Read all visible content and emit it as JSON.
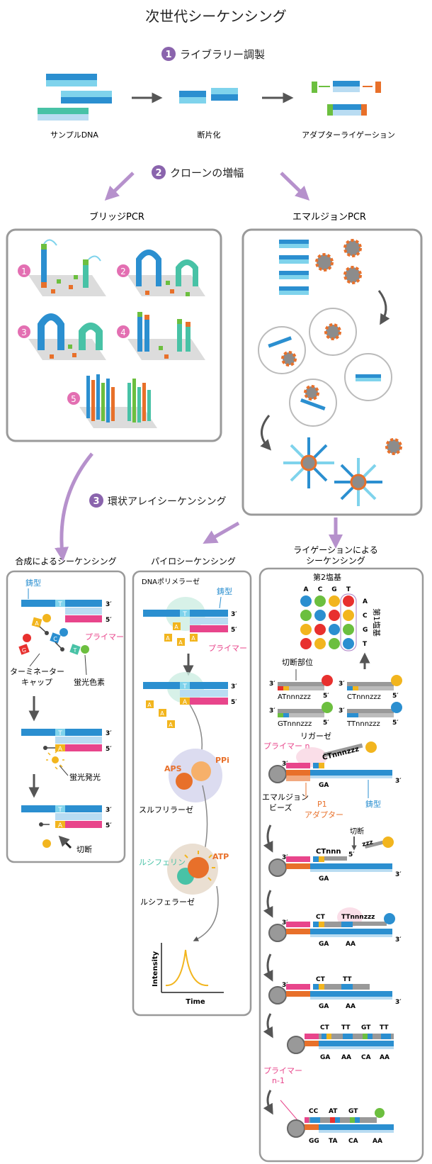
{
  "title": "次世代シーケンシング",
  "colors": {
    "blue": "#2b8fd0",
    "lightblue": "#b9dcf2",
    "cyan": "#7fd3ec",
    "teal": "#48c2a6",
    "green": "#6cbf3f",
    "orange": "#e8702a",
    "pink": "#e8458b",
    "yellow": "#f2b51e",
    "red": "#e8302e",
    "purple": "#8a64ad",
    "arrowpurple": "#b691cc",
    "gray": "#7a7a7a",
    "panel": "#9a9a9a",
    "magenta": "#e23c8a"
  },
  "steps": {
    "s1": {
      "num": "1",
      "label": "ライブラリー調製"
    },
    "s2": {
      "num": "2",
      "label": "クローンの増幅"
    },
    "s3": {
      "num": "3",
      "label": "環状アレイシーケンシング"
    }
  },
  "library": {
    "sample": "サンプルDNA",
    "fragment": "断片化",
    "ligation": "アダプターライゲーション"
  },
  "bridge": {
    "title": "ブリッジPCR",
    "nums": [
      "1",
      "2",
      "3",
      "4",
      "5"
    ]
  },
  "emulsion": {
    "title": "エマルジョンPCR"
  },
  "synthesis": {
    "title": "合成によるシーケンシング",
    "template": "鋳型",
    "primer": "プライマー",
    "terminator": "ターミネーター",
    "cap": "キャップ",
    "dye": "蛍光色素",
    "emit": "蛍光発光",
    "cleave": "切断",
    "p3": "3′",
    "p5": "5′",
    "T": "T",
    "A": "A",
    "G": "G",
    "C": "C"
  },
  "pyro": {
    "title": "パイロシーケンシング",
    "polymerase": "DNAポリメラーゼ",
    "template": "鋳型",
    "primer": "プライマー",
    "aps": "APS",
    "ppi": "PPi",
    "sulfurylase": "スルフリラーゼ",
    "luciferin": "ルシフェリン",
    "atp": "ATP",
    "luciferase": "ルシフェラーゼ",
    "intensity": "Intensity",
    "time": "Time"
  },
  "ligation": {
    "title_line1": "ライゲーションによる",
    "title_line2": "シーケンシング",
    "second_base": "第2塩基",
    "first_base": "第1塩基",
    "cols": [
      "A",
      "C",
      "G",
      "T"
    ],
    "rows": [
      "A",
      "C",
      "G",
      "T"
    ],
    "matrix": [
      [
        "#2b8fd0",
        "#6cbf3f",
        "#f2b51e",
        "#e8302e"
      ],
      [
        "#6cbf3f",
        "#2b8fd0",
        "#e8302e",
        "#f2b51e"
      ],
      [
        "#f2b51e",
        "#e8302e",
        "#2b8fd0",
        "#6cbf3f"
      ],
      [
        "#e8302e",
        "#f2b51e",
        "#6cbf3f",
        "#2b8fd0"
      ]
    ],
    "cleave_site": "切断部位",
    "probes": [
      "ATnnnzzz",
      "CTnnnzzz",
      "GTnnnzzz",
      "TTnnnzzz"
    ],
    "ligase": "リガーゼ",
    "primer_n": "プライマー n",
    "probe_ct": "CTnnnzzz",
    "beads_line1": "エマルジョン",
    "beads_line2": "ビーズ",
    "p1_line1": "P1",
    "p1_line2": "アダプター",
    "template": "鋳型",
    "GA": "GA",
    "AA": "AA",
    "CA": "CA",
    "GG": "GG",
    "TA": "TA",
    "CT": "CT",
    "TT": "TT",
    "GT": "GT",
    "CC": "CC",
    "AT": "AT",
    "ctnnn": "CTnnn",
    "zzz": "zzz",
    "cleave": "切断",
    "ttnnnzzz": "TTnnnzzz",
    "primer_n1_line1": "プライマー",
    "primer_n1_line2": "n-1",
    "p3": "3′",
    "p5": "5′"
  }
}
